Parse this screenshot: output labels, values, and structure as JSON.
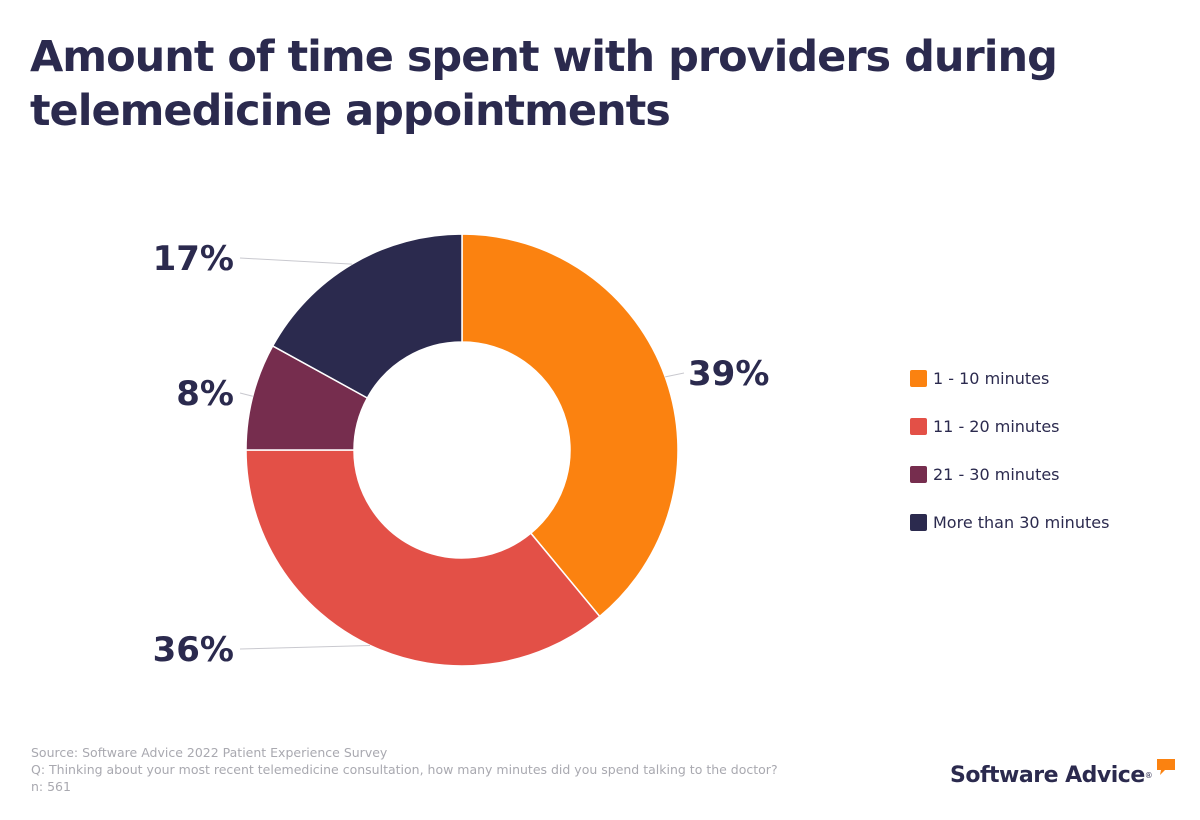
{
  "title": "Amount of time spent with providers during telemedicine appointments",
  "chart_data": {
    "type": "pie",
    "variant": "donut",
    "title": "Amount of time spent with providers during telemedicine appointments",
    "categories": [
      "1 - 10 minutes",
      "11 - 20 minutes",
      "21 - 30 minutes",
      "More than 30 minutes"
    ],
    "values": [
      39,
      36,
      8,
      17
    ],
    "labels": [
      "39%",
      "36%",
      "8%",
      "17%"
    ],
    "colors": [
      "#fb8210",
      "#e35047",
      "#762d4e",
      "#2b2a4e"
    ],
    "unit": "%",
    "legend_position": "right"
  },
  "footer": {
    "source": "Source: Software Advice 2022 Patient Experience Survey",
    "question": "Q: Thinking about your most recent telemedicine consultation, how many minutes did you spend talking to the doctor?",
    "sample": "n: 561"
  },
  "brand": {
    "name": "Software Advice",
    "registered_mark": "®",
    "accent_color": "#fb8210"
  }
}
